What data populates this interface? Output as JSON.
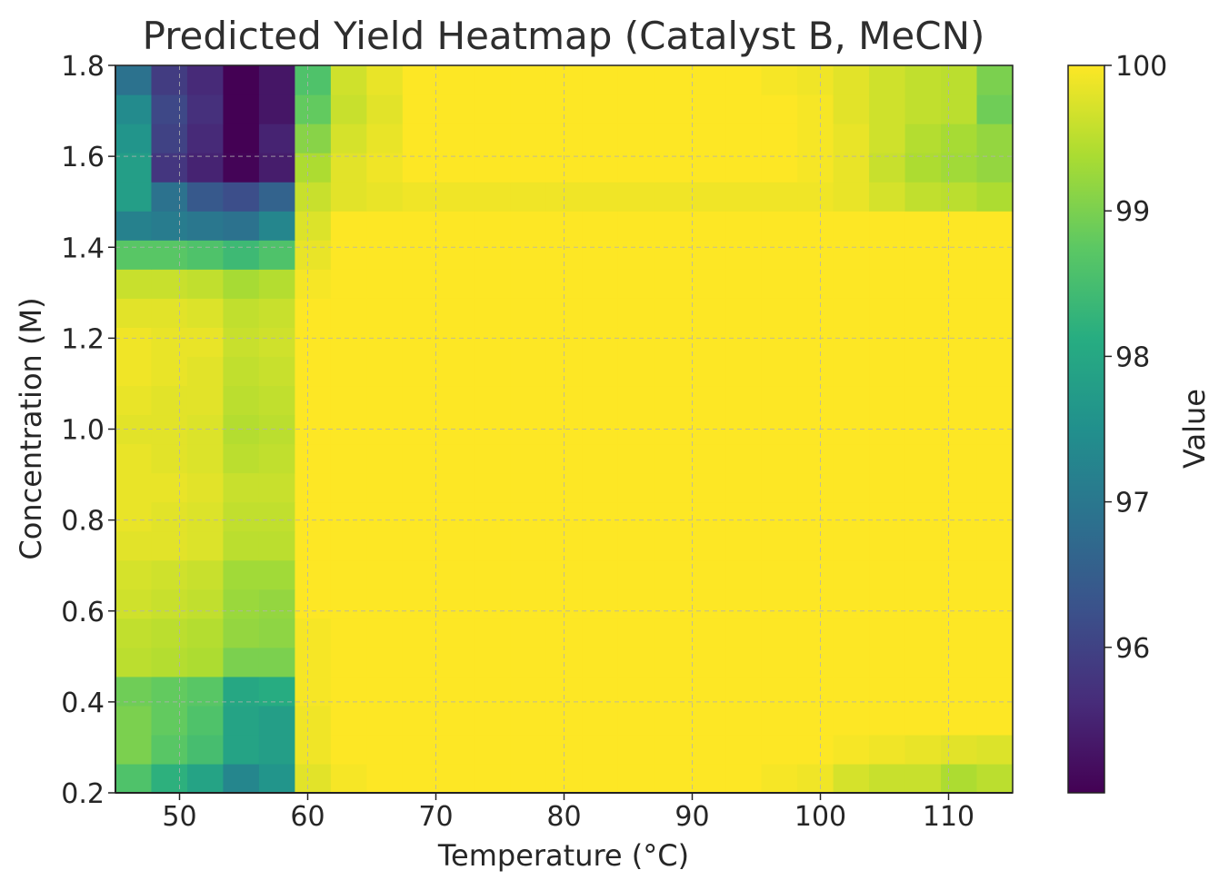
{
  "chart_data": {
    "type": "heatmap",
    "title": "Predicted Yield Heatmap (Catalyst B, MeCN)",
    "xlabel": "Temperature (°C)",
    "ylabel": "Concentration (M)",
    "xlim": [
      45,
      115
    ],
    "ylim": [
      0.2,
      1.8
    ],
    "x_ticks": [
      "50",
      "60",
      "70",
      "80",
      "90",
      "100",
      "110"
    ],
    "y_ticks": [
      "0.2",
      "0.4",
      "0.6",
      "0.8",
      "1.0",
      "1.2",
      "1.4",
      "1.6",
      "1.8"
    ],
    "grid": true,
    "colormap": "viridis",
    "colorbar": {
      "label": "Value",
      "min": 95.0,
      "max": 100.0,
      "ticks": [
        "96",
        "97",
        "98",
        "99",
        "100"
      ]
    },
    "x": [
      46.4,
      49.2,
      52.0,
      54.8,
      57.6,
      60.4,
      63.2,
      66.0,
      68.8,
      71.6,
      74.4,
      77.2,
      80.0,
      82.8,
      85.6,
      88.4,
      91.2,
      94.0,
      96.8,
      99.6,
      102.4,
      105.2,
      108.0,
      110.8,
      113.6
    ],
    "y": [
      0.232,
      0.296,
      0.36,
      0.424,
      0.488,
      0.552,
      0.616,
      0.68,
      0.744,
      0.808,
      0.872,
      0.936,
      1.0,
      1.064,
      1.128,
      1.192,
      1.256,
      1.32,
      1.384,
      1.448,
      1.512,
      1.576,
      1.64,
      1.704,
      1.768
    ],
    "z": [
      [
        98.6,
        98.2,
        97.9,
        97.3,
        97.6,
        99.8,
        99.95,
        100,
        100,
        100,
        100,
        100,
        100,
        100,
        100,
        100,
        100,
        100,
        99.95,
        99.9,
        99.7,
        99.6,
        99.6,
        99.4,
        99.5
      ],
      [
        99.0,
        98.7,
        98.5,
        97.9,
        97.8,
        99.9,
        100,
        100,
        100,
        100,
        100,
        100,
        100,
        100,
        100,
        100,
        100,
        100,
        100,
        100,
        99.95,
        99.9,
        99.85,
        99.8,
        99.75
      ],
      [
        99.0,
        98.8,
        98.6,
        97.9,
        97.8,
        99.9,
        100,
        100,
        100,
        100,
        100,
        100,
        100,
        100,
        100,
        100,
        100,
        100,
        100,
        100,
        100,
        100,
        100,
        100,
        100
      ],
      [
        98.9,
        98.8,
        98.7,
        98.0,
        98.1,
        99.95,
        100,
        100,
        100,
        100,
        100,
        100,
        100,
        100,
        100,
        100,
        100,
        100,
        100,
        100,
        100,
        100,
        100,
        100,
        100
      ],
      [
        99.5,
        99.45,
        99.4,
        99.0,
        99.0,
        99.95,
        100,
        100,
        100,
        100,
        100,
        100,
        100,
        100,
        100,
        100,
        100,
        100,
        100,
        100,
        100,
        100,
        100,
        100,
        100
      ],
      [
        99.55,
        99.5,
        99.45,
        99.2,
        99.15,
        99.95,
        100,
        100,
        100,
        100,
        100,
        100,
        100,
        100,
        100,
        100,
        100,
        100,
        100,
        100,
        100,
        100,
        100,
        100,
        100
      ],
      [
        99.65,
        99.6,
        99.55,
        99.25,
        99.2,
        100,
        100,
        100,
        100,
        100,
        100,
        100,
        100,
        100,
        100,
        100,
        100,
        100,
        100,
        100,
        100,
        100,
        100,
        100,
        100
      ],
      [
        99.7,
        99.65,
        99.6,
        99.3,
        99.3,
        100,
        100,
        100,
        100,
        100,
        100,
        100,
        100,
        100,
        100,
        100,
        100,
        100,
        100,
        100,
        100,
        100,
        100,
        100,
        100
      ],
      [
        99.8,
        99.8,
        99.75,
        99.5,
        99.5,
        100,
        100,
        100,
        100,
        100,
        100,
        100,
        100,
        100,
        100,
        100,
        100,
        100,
        100,
        100,
        100,
        100,
        100,
        100,
        100
      ],
      [
        99.85,
        99.8,
        99.75,
        99.55,
        99.55,
        100,
        100,
        100,
        100,
        100,
        100,
        100,
        100,
        100,
        100,
        100,
        100,
        100,
        100,
        100,
        100,
        100,
        100,
        100,
        100
      ],
      [
        99.85,
        99.85,
        99.8,
        99.6,
        99.6,
        100,
        100,
        100,
        100,
        100,
        100,
        100,
        100,
        100,
        100,
        100,
        100,
        100,
        100,
        100,
        100,
        100,
        100,
        100,
        100
      ],
      [
        99.85,
        99.8,
        99.75,
        99.5,
        99.55,
        100,
        100,
        100,
        100,
        100,
        100,
        100,
        100,
        100,
        100,
        100,
        100,
        100,
        100,
        100,
        100,
        100,
        100,
        100,
        100
      ],
      [
        99.8,
        99.8,
        99.75,
        99.45,
        99.5,
        100,
        100,
        100,
        100,
        100,
        100,
        100,
        100,
        100,
        100,
        100,
        100,
        100,
        100,
        100,
        100,
        100,
        100,
        100,
        100
      ],
      [
        99.85,
        99.8,
        99.8,
        99.5,
        99.55,
        100,
        100,
        100,
        100,
        100,
        100,
        100,
        100,
        100,
        100,
        100,
        100,
        100,
        100,
        100,
        100,
        100,
        100,
        100,
        100
      ],
      [
        99.9,
        99.85,
        99.8,
        99.55,
        99.6,
        100,
        100,
        100,
        100,
        100,
        100,
        100,
        100,
        100,
        100,
        100,
        100,
        100,
        100,
        100,
        100,
        100,
        100,
        100,
        100
      ],
      [
        99.9,
        99.85,
        99.85,
        99.6,
        99.65,
        100,
        100,
        100,
        100,
        100,
        100,
        100,
        100,
        100,
        100,
        100,
        100,
        100,
        100,
        100,
        100,
        100,
        100,
        100,
        100
      ],
      [
        99.8,
        99.8,
        99.75,
        99.55,
        99.6,
        100,
        100,
        100,
        100,
        100,
        100,
        100,
        100,
        100,
        100,
        100,
        100,
        100,
        100,
        100,
        100,
        100,
        100,
        100,
        100
      ],
      [
        99.6,
        99.6,
        99.55,
        99.35,
        99.45,
        99.95,
        100,
        100,
        100,
        100,
        100,
        100,
        100,
        100,
        100,
        100,
        100,
        100,
        100,
        100,
        100,
        100,
        100,
        100,
        100
      ],
      [
        98.7,
        98.7,
        98.6,
        98.4,
        98.6,
        99.85,
        100,
        100,
        100,
        100,
        100,
        100,
        100,
        100,
        100,
        100,
        100,
        100,
        100,
        100,
        100,
        100,
        100,
        100,
        100
      ],
      [
        97.2,
        97.1,
        97.0,
        96.9,
        97.3,
        99.75,
        100,
        100,
        100,
        100,
        100,
        100,
        100,
        100,
        100,
        100,
        100,
        100,
        100,
        100,
        100,
        100,
        100,
        100,
        100
      ],
      [
        97.8,
        96.9,
        96.4,
        96.2,
        96.6,
        99.6,
        99.8,
        99.85,
        99.9,
        99.9,
        99.9,
        99.9,
        99.9,
        99.9,
        99.9,
        99.9,
        99.9,
        99.9,
        99.9,
        99.9,
        99.85,
        99.7,
        99.55,
        99.5,
        99.4
      ],
      [
        97.8,
        95.8,
        95.5,
        95.05,
        95.4,
        99.4,
        99.8,
        99.9,
        100,
        100,
        100,
        100,
        100,
        100,
        100,
        100,
        100,
        100,
        100,
        99.95,
        99.85,
        99.6,
        99.4,
        99.3,
        99.2
      ],
      [
        97.6,
        96.0,
        95.6,
        95.0,
        95.5,
        99.1,
        99.7,
        99.85,
        100,
        100,
        100,
        100,
        100,
        100,
        100,
        100,
        100,
        100,
        100,
        99.95,
        99.85,
        99.65,
        99.45,
        99.35,
        99.2
      ],
      [
        97.4,
        96.1,
        95.7,
        95.0,
        95.3,
        98.8,
        99.6,
        99.8,
        100,
        100,
        100,
        100,
        100,
        100,
        100,
        100,
        100,
        100,
        100,
        99.95,
        99.8,
        99.65,
        99.55,
        99.5,
        98.9
      ],
      [
        96.9,
        95.9,
        95.6,
        95.0,
        95.3,
        98.6,
        99.65,
        99.85,
        100,
        100,
        100,
        100,
        100,
        100,
        100,
        100,
        100,
        100,
        99.95,
        99.9,
        99.8,
        99.65,
        99.55,
        99.5,
        99.0
      ]
    ]
  }
}
